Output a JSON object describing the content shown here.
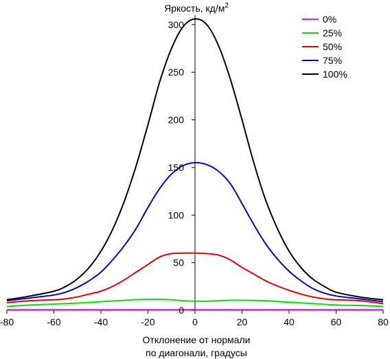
{
  "chart_data": {
    "type": "line",
    "title": "Яркость, кд/м",
    "title_superscript": "2",
    "xlabel_line1": "Отклонение от нормали",
    "xlabel_line2": "по диагонали, градусы",
    "xlim": [
      -80,
      80
    ],
    "ylim": [
      0,
      310
    ],
    "x_ticks": [
      -80,
      -60,
      -40,
      -20,
      0,
      20,
      40,
      60,
      80
    ],
    "y_ticks": [
      0,
      50,
      100,
      150,
      200,
      250,
      300
    ],
    "legend_position": "top-right",
    "series": [
      {
        "name": "0%",
        "color": "#ff00ff",
        "x": [
          -80,
          -40,
          0,
          40,
          80
        ],
        "y": [
          0.5,
          0.5,
          0.5,
          0.5,
          0.5
        ]
      },
      {
        "name": "25%",
        "color": "#00e000",
        "x": [
          -80,
          -70,
          -60,
          -50,
          -40,
          -30,
          -20,
          -15,
          -10,
          -5,
          0,
          5,
          10,
          15,
          20,
          30,
          40,
          50,
          60,
          70,
          80
        ],
        "y": [
          4,
          5.5,
          6.5,
          7.5,
          9,
          10.5,
          11.5,
          11.5,
          11,
          10,
          9.5,
          9.5,
          10,
          10.5,
          10.5,
          10,
          8.5,
          7,
          5.5,
          5,
          4
        ]
      },
      {
        "name": "50%",
        "color": "#e00000",
        "x": [
          -80,
          -70,
          -60,
          -55,
          -50,
          -45,
          -40,
          -35,
          -30,
          -25,
          -20,
          -15,
          -10,
          -5,
          0,
          5,
          10,
          15,
          20,
          25,
          30,
          35,
          40,
          45,
          50,
          55,
          60,
          70,
          80
        ],
        "y": [
          8,
          10,
          11,
          12,
          14,
          17,
          20,
          25,
          32,
          40,
          48,
          56,
          59.5,
          60,
          60,
          59.5,
          58,
          53,
          45,
          38,
          31,
          25.5,
          21,
          17,
          14,
          12,
          11,
          10,
          7
        ]
      },
      {
        "name": "75%",
        "color": "#0000cc",
        "x": [
          -80,
          -70,
          -60,
          -55,
          -50,
          -45,
          -40,
          -35,
          -30,
          -25,
          -20,
          -15,
          -10,
          -5,
          0,
          5,
          10,
          15,
          20,
          25,
          30,
          35,
          40,
          45,
          50,
          55,
          60,
          70,
          80
        ],
        "y": [
          10,
          13,
          16,
          19,
          24,
          31,
          40,
          53,
          68,
          86,
          108,
          128,
          143,
          152,
          155,
          153,
          146,
          133,
          112,
          90,
          70,
          54,
          41,
          31,
          23,
          18,
          15,
          12,
          9
        ]
      },
      {
        "name": "100%",
        "color": "#000000",
        "x": [
          -80,
          -70,
          -60,
          -55,
          -50,
          -45,
          -40,
          -35,
          -30,
          -25,
          -20,
          -15,
          -10,
          -5,
          0,
          5,
          10,
          15,
          20,
          25,
          30,
          35,
          40,
          45,
          50,
          55,
          60,
          70,
          80
        ],
        "y": [
          11,
          15,
          20,
          25,
          33,
          45,
          62,
          85,
          115,
          152,
          195,
          240,
          275,
          298,
          306,
          300,
          278,
          243,
          200,
          155,
          116,
          86,
          62,
          45,
          33,
          25,
          19,
          14,
          11
        ]
      }
    ]
  }
}
